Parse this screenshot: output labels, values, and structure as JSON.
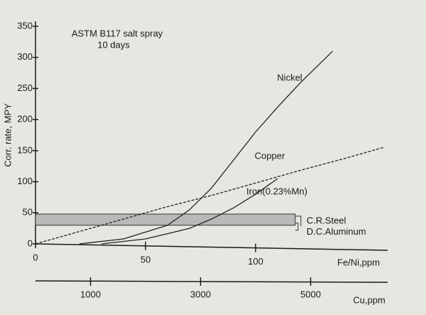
{
  "chart_data": {
    "type": "line",
    "annotations": [
      "ASTM B117 salt spray",
      "10 days"
    ],
    "ylabel": "Corr. rate, MPY",
    "xlabel": "Fe/Ni,ppm",
    "x2label": "Cu,ppm",
    "xlim": [
      0,
      160
    ],
    "xticks": [
      0,
      50,
      100
    ],
    "x2lim": [
      0,
      6400
    ],
    "x2ticks": [
      1000,
      3000,
      5000
    ],
    "ylim": [
      0,
      350
    ],
    "yticks": [
      0,
      50,
      100,
      150,
      200,
      250,
      300,
      350
    ],
    "series": [
      {
        "name": "Nickel",
        "color": "#222222",
        "x": [
          20,
          40,
          60,
          70,
          80,
          90,
          100,
          110,
          120,
          135
        ],
        "values": [
          0,
          8,
          30,
          55,
          90,
          135,
          180,
          220,
          258,
          310
        ]
      },
      {
        "name": "Copper",
        "color": "#222222",
        "x": [
          0,
          20,
          40,
          60,
          80,
          100,
          120,
          140,
          158
        ],
        "values": [
          0,
          20,
          40,
          60,
          78,
          98,
          118,
          137,
          155
        ]
      },
      {
        "name": "Iron(0.23%Mn)",
        "color": "#222222",
        "x": [
          30,
          50,
          70,
          80,
          90,
          100,
          110
        ],
        "values": [
          0,
          8,
          25,
          40,
          58,
          80,
          105
        ]
      }
    ],
    "band": {
      "labels": [
        "C.R.Steel",
        "D.C.Aluminum"
      ],
      "x": [
        0,
        118
      ],
      "y": [
        30,
        48
      ],
      "color": "#b9b9b7"
    }
  }
}
